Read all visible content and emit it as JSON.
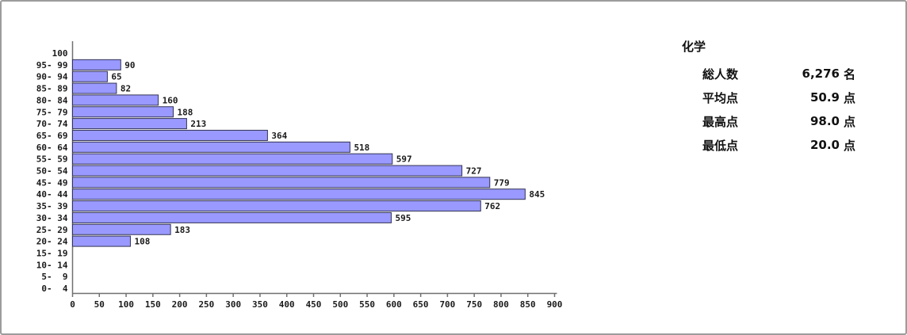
{
  "stats": {
    "title": "化学",
    "rows": [
      {
        "label": "総人数",
        "value": "6,276",
        "unit": "名"
      },
      {
        "label": "平均点",
        "value": "50.9",
        "unit": "点"
      },
      {
        "label": "最高点",
        "value": "98.0",
        "unit": "点"
      },
      {
        "label": "最低点",
        "value": "20.0",
        "unit": "点"
      }
    ]
  },
  "chart_data": {
    "type": "bar",
    "orientation": "horizontal",
    "title": "",
    "categories": [
      "100",
      "95- 99",
      "90- 94",
      "85- 89",
      "80- 84",
      "75- 79",
      "70- 74",
      "65- 69",
      "60- 64",
      "55- 59",
      "50- 54",
      "45- 49",
      "40- 44",
      "35- 39",
      "30- 34",
      "25- 29",
      "20- 24",
      "15- 19",
      "10- 14",
      " 5-  9",
      " 0-  4"
    ],
    "values": [
      0,
      90,
      65,
      82,
      160,
      188,
      213,
      364,
      518,
      597,
      727,
      779,
      845,
      762,
      595,
      183,
      108,
      0,
      0,
      0,
      0
    ],
    "value_labels": [
      "",
      "90",
      "65",
      "82",
      "160",
      "188",
      "213",
      "364",
      "518",
      "597",
      "727",
      "779",
      "845",
      "762",
      "595",
      "183",
      "108",
      "",
      "",
      "",
      ""
    ],
    "x_ticks": [
      0,
      50,
      100,
      150,
      200,
      250,
      300,
      350,
      400,
      450,
      500,
      550,
      600,
      650,
      700,
      750,
      800,
      850,
      900
    ],
    "xlim": [
      0,
      900
    ],
    "grid": false,
    "legend": "none",
    "colors": {
      "bar_fill": "#9999ff",
      "bar_border": "#333355",
      "axis": "#707070",
      "text": "#1a1a1a"
    }
  }
}
